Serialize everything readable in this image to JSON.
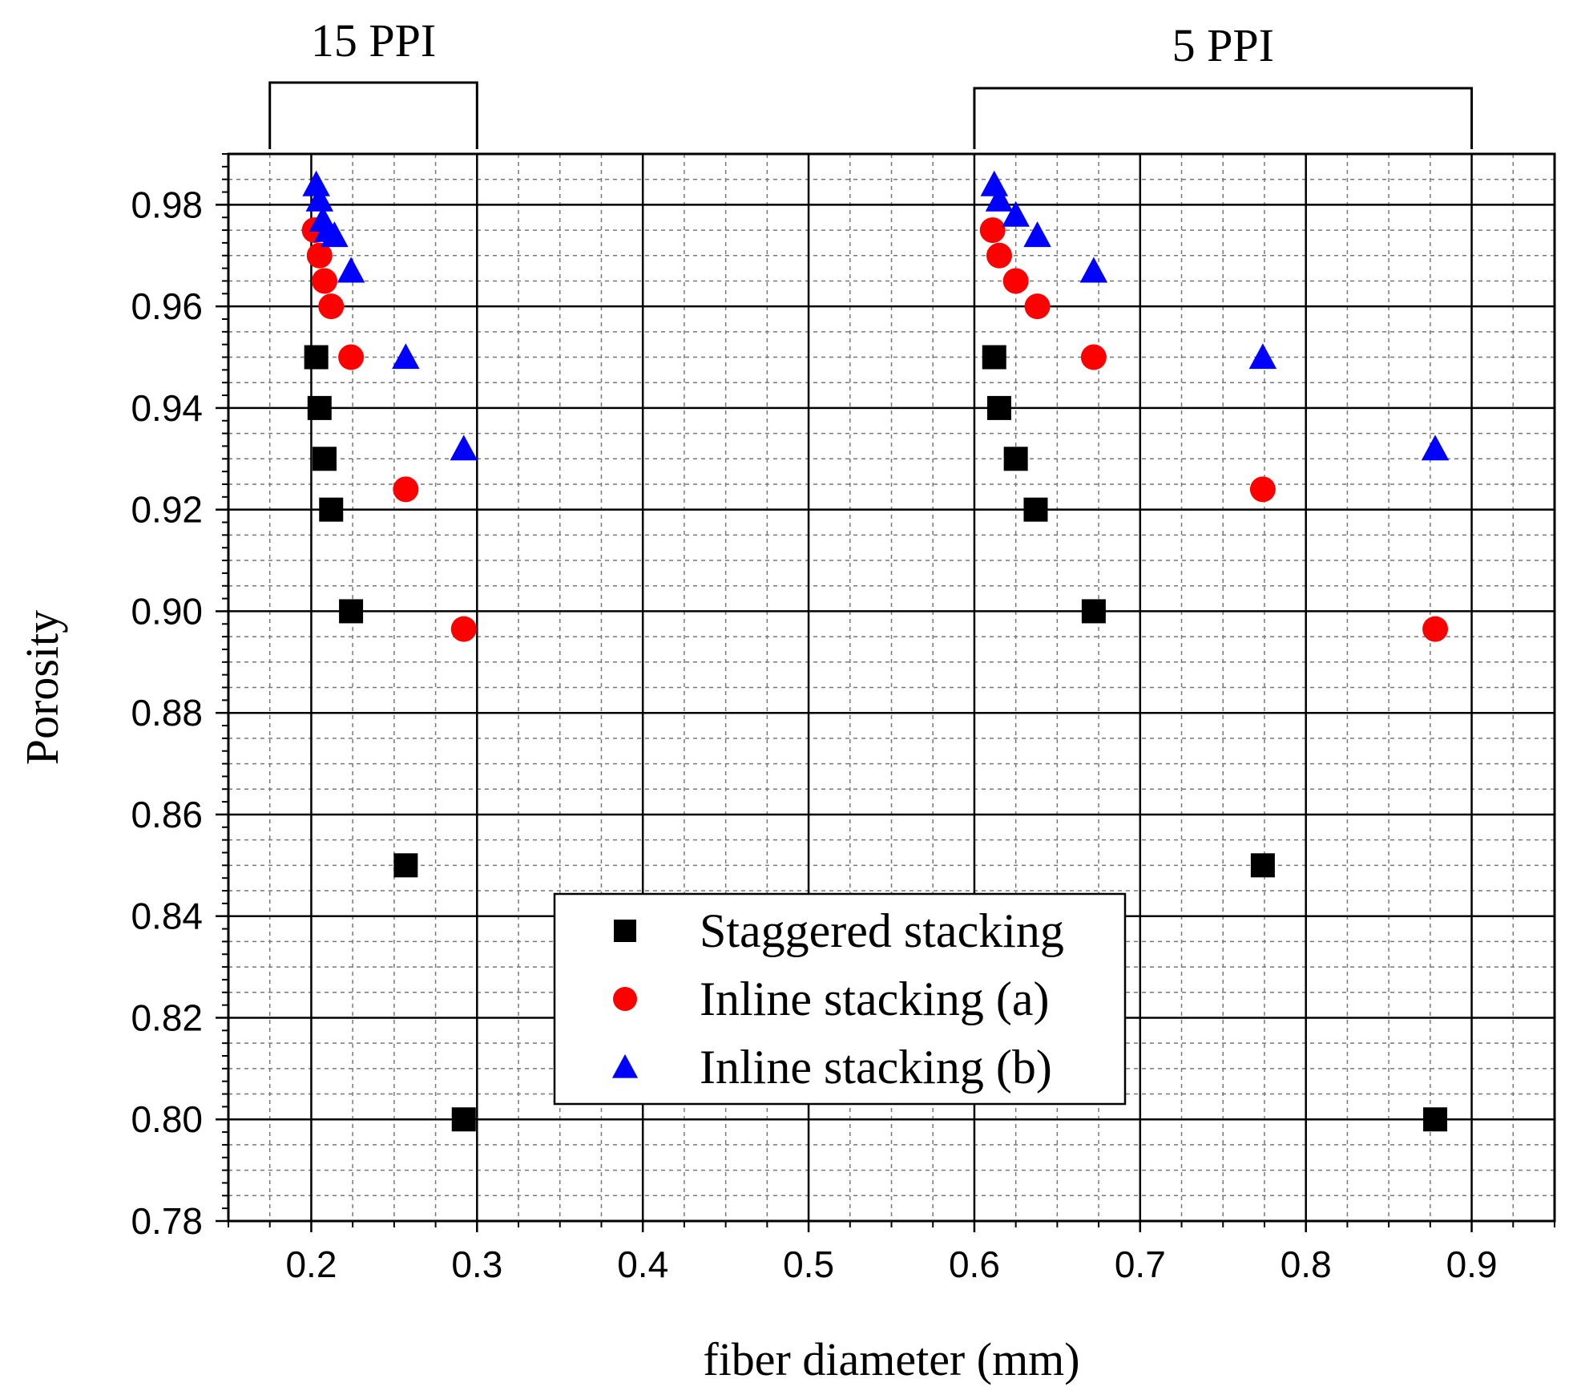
{
  "chart_data": {
    "type": "scatter",
    "title": "",
    "xlabel": "fiber diameter (mm)",
    "ylabel": "Porosity",
    "xlim": [
      0.15,
      0.95
    ],
    "ylim": [
      0.78,
      0.99
    ],
    "x_ticks": [
      "0.2",
      "0.3",
      "0.4",
      "0.5",
      "0.6",
      "0.7",
      "0.8",
      "0.9"
    ],
    "y_ticks": [
      "0.78",
      "0.80",
      "0.82",
      "0.84",
      "0.86",
      "0.88",
      "0.90",
      "0.92",
      "0.94",
      "0.96",
      "0.98"
    ],
    "grid": true,
    "legend_position": "lower-center",
    "series": [
      {
        "name": "Staggered stacking",
        "marker": "square",
        "color": "#000000",
        "points": [
          {
            "x": 0.203,
            "y": 0.95
          },
          {
            "x": 0.205,
            "y": 0.94
          },
          {
            "x": 0.208,
            "y": 0.93
          },
          {
            "x": 0.212,
            "y": 0.92
          },
          {
            "x": 0.224,
            "y": 0.9
          },
          {
            "x": 0.257,
            "y": 0.85
          },
          {
            "x": 0.292,
            "y": 0.8
          },
          {
            "x": 0.612,
            "y": 0.95
          },
          {
            "x": 0.615,
            "y": 0.94
          },
          {
            "x": 0.625,
            "y": 0.93
          },
          {
            "x": 0.637,
            "y": 0.92
          },
          {
            "x": 0.672,
            "y": 0.9
          },
          {
            "x": 0.774,
            "y": 0.85
          },
          {
            "x": 0.878,
            "y": 0.8
          }
        ]
      },
      {
        "name": "Inline stacking (a)",
        "marker": "circle",
        "color": "#ff0000",
        "points": [
          {
            "x": 0.202,
            "y": 0.975
          },
          {
            "x": 0.205,
            "y": 0.97
          },
          {
            "x": 0.208,
            "y": 0.965
          },
          {
            "x": 0.212,
            "y": 0.96
          },
          {
            "x": 0.224,
            "y": 0.95
          },
          {
            "x": 0.257,
            "y": 0.924
          },
          {
            "x": 0.292,
            "y": 0.8965
          },
          {
            "x": 0.611,
            "y": 0.975
          },
          {
            "x": 0.615,
            "y": 0.97
          },
          {
            "x": 0.625,
            "y": 0.965
          },
          {
            "x": 0.638,
            "y": 0.96
          },
          {
            "x": 0.672,
            "y": 0.95
          },
          {
            "x": 0.774,
            "y": 0.924
          },
          {
            "x": 0.878,
            "y": 0.8965
          }
        ]
      },
      {
        "name": "Inline stacking (b)",
        "marker": "triangle",
        "color": "#0000ff",
        "points": [
          {
            "x": 0.203,
            "y": 0.984
          },
          {
            "x": 0.205,
            "y": 0.981
          },
          {
            "x": 0.207,
            "y": 0.977
          },
          {
            "x": 0.21,
            "y": 0.975
          },
          {
            "x": 0.214,
            "y": 0.974
          },
          {
            "x": 0.224,
            "y": 0.967
          },
          {
            "x": 0.257,
            "y": 0.95
          },
          {
            "x": 0.292,
            "y": 0.932
          },
          {
            "x": 0.612,
            "y": 0.984
          },
          {
            "x": 0.615,
            "y": 0.981
          },
          {
            "x": 0.625,
            "y": 0.978
          },
          {
            "x": 0.638,
            "y": 0.974
          },
          {
            "x": 0.672,
            "y": 0.967
          },
          {
            "x": 0.774,
            "y": 0.95
          },
          {
            "x": 0.878,
            "y": 0.932
          }
        ]
      }
    ],
    "annotations": [
      {
        "label": "15 PPI",
        "x_range": [
          0.175,
          0.3
        ]
      },
      {
        "label": "5 PPI",
        "x_range": [
          0.6,
          0.9
        ]
      }
    ]
  }
}
